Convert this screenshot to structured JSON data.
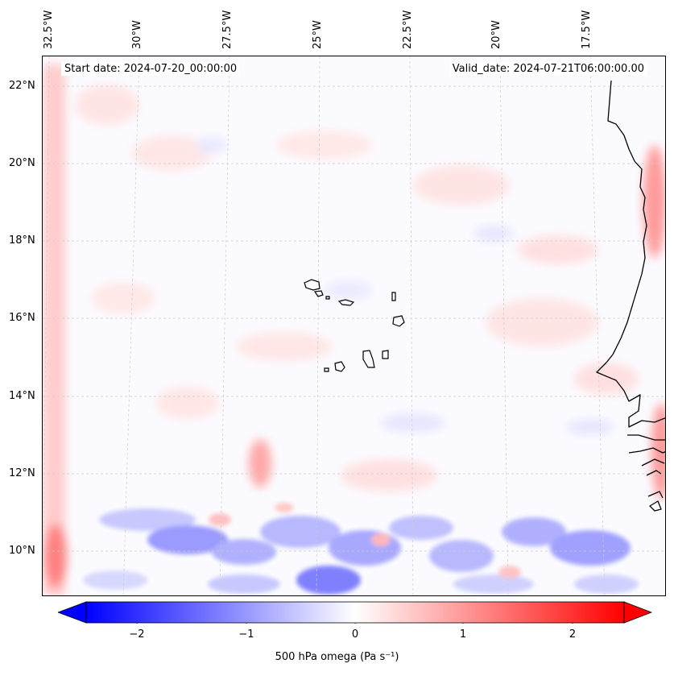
{
  "map": {
    "start_date": "Start date: 2024-07-20_00:00:00",
    "valid_date": "Valid_date: 2024-07-21T06:00:00.00",
    "lon_labels": [
      "32.5°W",
      "30°W",
      "27.5°W",
      "25°W",
      "22.5°W",
      "20°W",
      "17.5°W"
    ],
    "lat_labels": [
      "22°N",
      "20°N",
      "18°N",
      "16°N",
      "14°N",
      "12°N",
      "10°N"
    ],
    "gridlines": true
  },
  "colorbar": {
    "label": "500 hPa omega (Pa s⁻¹)",
    "ticks": [
      "−2",
      "−1",
      "0",
      "1",
      "2"
    ],
    "range": [
      -2.6,
      2.6
    ],
    "extend": "both",
    "colormap": "bwr",
    "low_color": "#0000ff",
    "mid_color": "#ffffff",
    "high_color": "#ff0000"
  }
}
